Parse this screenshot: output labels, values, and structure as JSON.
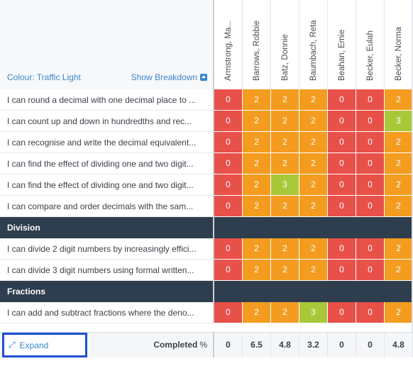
{
  "header": {
    "colour_label": "Colour: Traffic Light",
    "breakdown_label": "Show Breakdown",
    "students": [
      "Armstrong, Ma...",
      "Barrows, Robbie",
      "Batz, Donnie",
      "Baumbach, Reta",
      "Beahan, Emie",
      "Becker, Eulah",
      "Becker, Norma"
    ]
  },
  "rows": [
    {
      "type": "item",
      "label": "I can round a decimal with one decimal place to ...",
      "values": [
        "0",
        "2",
        "2",
        "2",
        "0",
        "0",
        "2"
      ]
    },
    {
      "type": "item",
      "label": "I can count up and down in hundredths and rec...",
      "values": [
        "0",
        "2",
        "2",
        "2",
        "0",
        "0",
        "3"
      ]
    },
    {
      "type": "item",
      "label": "I can recognise and write the decimal equivalent...",
      "values": [
        "0",
        "2",
        "2",
        "2",
        "0",
        "0",
        "2"
      ]
    },
    {
      "type": "item",
      "label": "I can find the effect of dividing one and two digit...",
      "values": [
        "0",
        "2",
        "2",
        "2",
        "0",
        "0",
        "2"
      ]
    },
    {
      "type": "item",
      "label": "I can find the effect of dividing one and two digit...",
      "values": [
        "0",
        "2",
        "3",
        "2",
        "0",
        "0",
        "2"
      ]
    },
    {
      "type": "item",
      "label": "I can compare and order decimals with the sam...",
      "values": [
        "0",
        "2",
        "2",
        "2",
        "0",
        "0",
        "2"
      ]
    },
    {
      "type": "section",
      "label": "Division"
    },
    {
      "type": "item",
      "label": "I can divide 2 digit numbers by increasingly effici...",
      "values": [
        "0",
        "2",
        "2",
        "2",
        "0",
        "0",
        "2"
      ]
    },
    {
      "type": "item",
      "label": "I can divide 3 digit numbers using formal written...",
      "values": [
        "0",
        "2",
        "2",
        "2",
        "0",
        "0",
        "2"
      ]
    },
    {
      "type": "section",
      "label": "Fractions"
    },
    {
      "type": "item",
      "label": "I can add and subtract fractions where the deno...",
      "values": [
        "0",
        "2",
        "2",
        "3",
        "0",
        "0",
        "2"
      ]
    }
  ],
  "footer": {
    "expand_label": "Expand",
    "completed_label": "Completed",
    "completed_unit": "%",
    "completed_values": [
      "0",
      "6.5",
      "4.8",
      "3.2",
      "0",
      "0",
      "4.8"
    ]
  },
  "colors": {
    "level_0": "#e8504a",
    "level_2": "#f39c1f",
    "level_3": "#a8c83a",
    "section_bg": "#2f3e4e",
    "link": "#3a86c8",
    "highlight_border": "#1f4fd1"
  },
  "icons": {
    "breakdown": "caret-up-box-icon",
    "expand": "expand-arrows-icon"
  }
}
